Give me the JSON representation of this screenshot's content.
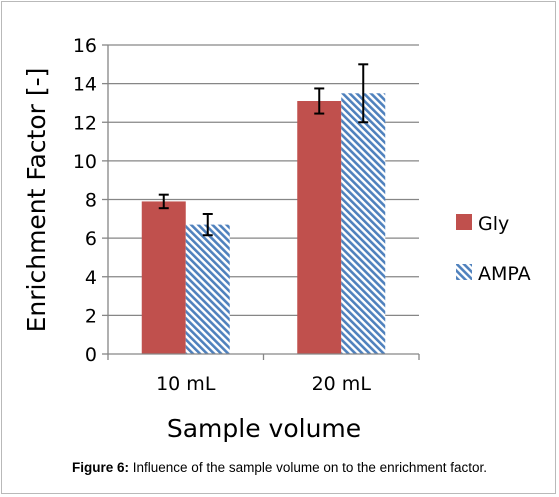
{
  "caption": {
    "label": "Figure 6:",
    "text": " Influence of the sample volume on to the enrichment factor."
  },
  "chart_data": {
    "type": "bar",
    "categories": [
      "10 mL",
      "20 mL"
    ],
    "series": [
      {
        "name": "Gly",
        "values": [
          7.9,
          13.1
        ],
        "errors": [
          0.35,
          0.65
        ],
        "color": "#c0504d",
        "pattern": "solid"
      },
      {
        "name": "AMPA",
        "values": [
          6.7,
          13.5
        ],
        "errors": [
          0.55,
          1.5
        ],
        "color": "#4f81bd",
        "pattern": "diagonal-stripes"
      }
    ],
    "title": "",
    "xlabel": "Sample volume",
    "ylabel": "Enrichment Factor [-]",
    "ylim": [
      0,
      16
    ],
    "yticks": [
      0,
      2,
      4,
      6,
      8,
      10,
      12,
      14,
      16
    ],
    "grid": true,
    "legend": "right"
  }
}
